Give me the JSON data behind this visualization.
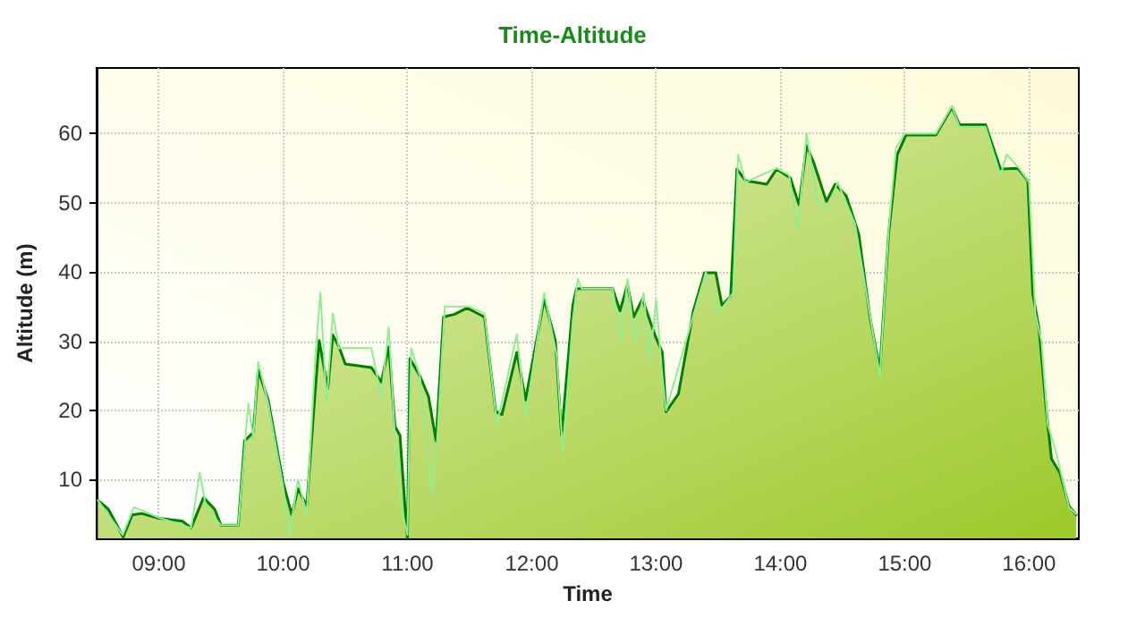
{
  "chart_data": {
    "type": "area",
    "title": "Time-Altitude",
    "xlabel": "Time",
    "ylabel": "Altitude (m)",
    "xlim": [
      8.5,
      16.4
    ],
    "ylim": [
      1.5,
      69.5
    ],
    "xticks": [
      {
        "value": 9,
        "label": "09:00"
      },
      {
        "value": 10,
        "label": "10:00"
      },
      {
        "value": 11,
        "label": "11:00"
      },
      {
        "value": 12,
        "label": "12:00"
      },
      {
        "value": 13,
        "label": "13:00"
      },
      {
        "value": 14,
        "label": "14:00"
      },
      {
        "value": 15,
        "label": "15:00"
      },
      {
        "value": 16,
        "label": "16:00"
      }
    ],
    "yticks": [
      10,
      20,
      30,
      40,
      50,
      60
    ],
    "grid": true,
    "marker": "none",
    "series": [
      {
        "type": "line",
        "color": "#90ee90",
        "x": [
          8.51,
          8.71,
          8.8,
          9.0,
          9.26,
          9.33,
          9.38,
          9.5,
          9.64,
          9.72,
          9.76,
          9.8,
          9.88,
          10.0,
          10.05,
          10.12,
          10.19,
          10.26,
          10.3,
          10.35,
          10.4,
          10.45,
          10.5,
          10.71,
          10.79,
          10.85,
          10.9,
          10.95,
          11.0,
          11.03,
          11.1,
          11.2,
          11.24,
          11.3,
          11.5,
          11.62,
          11.72,
          11.88,
          11.95,
          12.1,
          12.2,
          12.25,
          12.33,
          12.37,
          12.4,
          12.65,
          12.72,
          12.77,
          12.83,
          12.9,
          12.95,
          13.0,
          13.05,
          13.08,
          13.4,
          13.5,
          13.62,
          13.66,
          13.72,
          13.97,
          14.07,
          14.14,
          14.21,
          14.3,
          14.38,
          14.46,
          14.6,
          14.8,
          14.87,
          14.93,
          15.0,
          15.25,
          15.38,
          15.44,
          15.65,
          15.77,
          15.82,
          15.92,
          16.0,
          16.05,
          16.1,
          16.15,
          16.2,
          16.23,
          16.32,
          16.38
        ],
        "values": [
          7,
          2,
          6,
          4.5,
          3,
          11,
          6,
          3.4,
          3.4,
          21,
          16,
          27,
          21,
          9,
          2,
          10,
          5,
          28,
          37,
          21,
          34,
          29,
          29,
          29,
          22,
          32,
          16,
          6,
          2,
          29,
          25,
          8,
          16,
          35,
          35,
          34,
          18,
          31,
          19,
          37,
          28,
          14,
          33,
          39,
          37.6,
          37.6,
          30,
          39,
          30,
          37,
          27,
          36,
          25,
          20,
          40,
          34,
          37,
          57,
          53,
          55,
          54,
          46,
          60,
          50,
          49,
          53,
          47,
          25,
          46,
          58,
          60,
          60,
          64,
          61,
          61,
          54,
          57,
          55,
          53,
          34,
          30,
          18,
          15,
          13,
          6,
          5
        ]
      },
      {
        "color": "#008000",
        "x": [
          8.51,
          8.595,
          8.714,
          8.786,
          8.86,
          9.0,
          9.19,
          9.26,
          9.36,
          9.45,
          9.5,
          9.64,
          9.69,
          9.76,
          9.8,
          9.88,
          10.0,
          10.07,
          10.12,
          10.19,
          10.26,
          10.29,
          10.36,
          10.4,
          10.45,
          10.5,
          10.71,
          10.79,
          10.85,
          10.9,
          10.94,
          10.98,
          11.0,
          11.02,
          11.1,
          11.17,
          11.23,
          11.29,
          11.38,
          11.48,
          11.62,
          11.71,
          11.76,
          11.88,
          11.95,
          12.1,
          12.19,
          12.24,
          12.33,
          12.36,
          12.65,
          12.71,
          12.77,
          12.82,
          12.89,
          12.99,
          13.05,
          13.08,
          13.18,
          13.3,
          13.39,
          13.48,
          13.53,
          13.6,
          13.65,
          13.72,
          13.89,
          13.97,
          14.08,
          14.15,
          14.21,
          14.27,
          14.37,
          14.44,
          14.53,
          14.63,
          14.72,
          14.8,
          14.87,
          14.94,
          15.01,
          15.25,
          15.38,
          15.44,
          15.65,
          15.77,
          15.91,
          15.99,
          16.03,
          16.08,
          16.14,
          16.18,
          16.25,
          16.32,
          16.38
        ],
        "values": [
          7,
          5.7,
          1.7,
          4.9,
          5.1,
          4.4,
          4,
          3,
          7.4,
          5.7,
          3.4,
          3.4,
          15.6,
          16.8,
          25.8,
          21.5,
          9.6,
          4.9,
          8.7,
          6.2,
          23.2,
          30.1,
          23.2,
          30.9,
          29.2,
          26.7,
          26.2,
          24.1,
          29.2,
          17.7,
          16.4,
          6.2,
          1.5,
          27.5,
          25,
          22,
          15.6,
          33.5,
          33.9,
          34.8,
          33.5,
          19.8,
          19.4,
          28.4,
          21.5,
          36.1,
          30.1,
          16.4,
          35.2,
          37.6,
          37.6,
          34.4,
          38.2,
          33.5,
          36.1,
          30.9,
          28.4,
          19.8,
          22.4,
          34.4,
          39.9,
          39.9,
          35.2,
          36.5,
          54.9,
          53.2,
          52.7,
          54.9,
          53.6,
          49.7,
          58.3,
          55.7,
          50.2,
          52.7,
          51,
          45.5,
          33.5,
          25.8,
          45.5,
          57,
          59.8,
          59.8,
          63.8,
          61.3,
          61.3,
          54.9,
          55,
          53.2,
          36.9,
          31.8,
          19.8,
          13,
          10.9,
          6.2,
          4.9
        ]
      }
    ]
  }
}
